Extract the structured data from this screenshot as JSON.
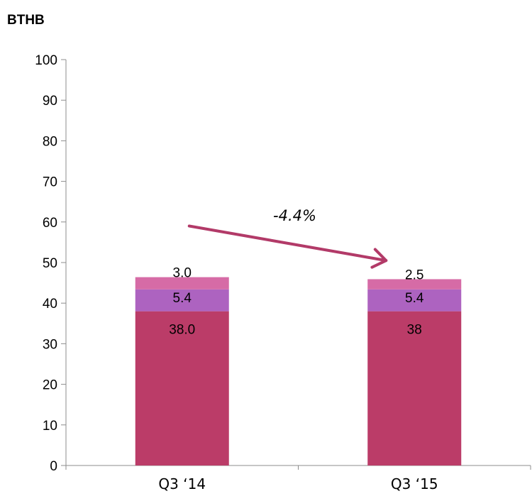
{
  "unit_label": "BTHB",
  "chart_data": {
    "type": "bar",
    "stacked": true,
    "categories": [
      "Q3 ‘14",
      "Q3 ‘15"
    ],
    "series": [
      {
        "values": [
          38.0,
          38
        ],
        "labels": [
          "38.0",
          "38"
        ]
      },
      {
        "values": [
          5.4,
          5.4
        ],
        "labels": [
          "5.4",
          "5.4"
        ]
      },
      {
        "values": [
          3.0,
          2.5
        ],
        "labels": [
          "3.0",
          "2.5"
        ]
      }
    ],
    "ylim": [
      0,
      100
    ],
    "yticks": [
      0,
      10,
      20,
      30,
      40,
      50,
      60,
      70,
      80,
      90,
      100
    ],
    "ytick_labels": [
      "0",
      "10",
      "20",
      "30",
      "40",
      "50",
      "60",
      "70",
      "80",
      "90",
      "100"
    ],
    "grid": false,
    "annotations": [
      {
        "text": "-4.4%",
        "type": "arrow",
        "from_category": "Q3 ‘14",
        "to_category": "Q3 ‘15"
      }
    ],
    "colors": {
      "series": [
        "#bb3c68",
        "#ad63c0",
        "#d66ba6"
      ],
      "arrow": "#b23a68",
      "axis": "#8c8c8c",
      "text": "#000000"
    }
  }
}
